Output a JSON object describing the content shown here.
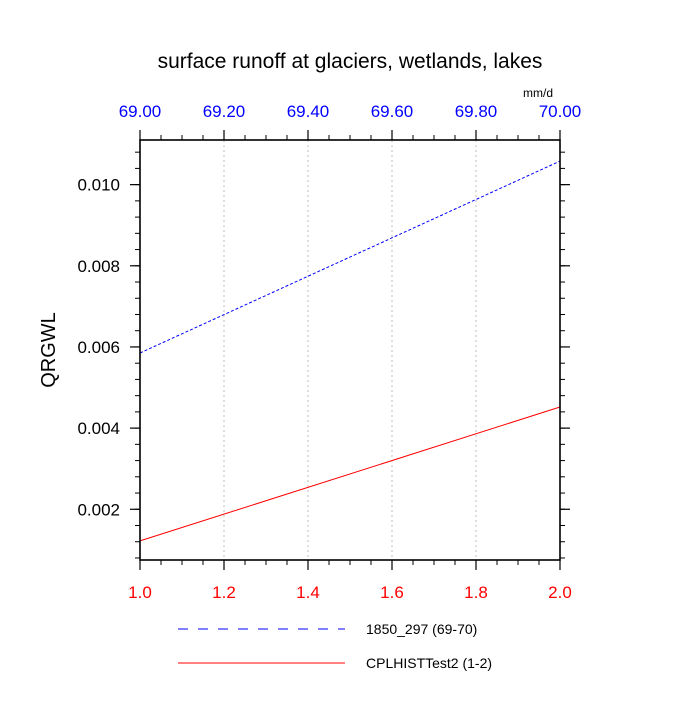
{
  "chart_data": {
    "type": "line",
    "title": "surface runoff at glaciers, wetlands, lakes",
    "ylabel": "QRGWL",
    "units_label": "mm/d",
    "ylim": [
      0.00075,
      0.0111
    ],
    "y_ticks": [
      {
        "value": 0.002,
        "label": "0.002"
      },
      {
        "value": 0.004,
        "label": "0.004"
      },
      {
        "value": 0.006,
        "label": "0.006"
      },
      {
        "value": 0.008,
        "label": "0.008"
      },
      {
        "value": 0.01,
        "label": "0.010"
      }
    ],
    "x_bottom": {
      "range": [
        1.0,
        2.0
      ],
      "color": "#ff0000",
      "ticks": [
        {
          "value": 1.0,
          "label": "1.0"
        },
        {
          "value": 1.2,
          "label": "1.2"
        },
        {
          "value": 1.4,
          "label": "1.4"
        },
        {
          "value": 1.6,
          "label": "1.6"
        },
        {
          "value": 1.8,
          "label": "1.8"
        },
        {
          "value": 2.0,
          "label": "2.0"
        }
      ]
    },
    "x_top": {
      "range": [
        69.0,
        70.0
      ],
      "color": "#0000ff",
      "ticks": [
        {
          "value": 69.0,
          "label": "69.00"
        },
        {
          "value": 69.2,
          "label": "69.20"
        },
        {
          "value": 69.4,
          "label": "69.40"
        },
        {
          "value": 69.6,
          "label": "69.60"
        },
        {
          "value": 69.8,
          "label": "69.80"
        },
        {
          "value": 70.0,
          "label": "70.00"
        }
      ]
    },
    "grid": "vertical-dotted",
    "legend_position": "bottom",
    "series": [
      {
        "name": "1850_297 (69-70)",
        "axis": "top",
        "color": "#0000ff",
        "dash": "dashed",
        "x": [
          69.0,
          70.0
        ],
        "y": [
          0.00585,
          0.01058
        ]
      },
      {
        "name": "CPLHISTTest2 (1-2)",
        "axis": "bottom",
        "color": "#ff0000",
        "dash": "solid",
        "x": [
          1.0,
          2.0
        ],
        "y": [
          0.00122,
          0.00452
        ]
      }
    ]
  }
}
